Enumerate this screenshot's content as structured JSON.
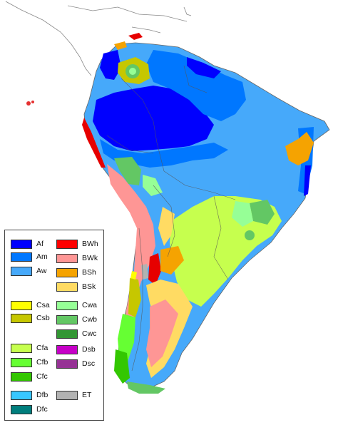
{
  "legend": {
    "items": [
      {
        "code": "Af",
        "color": "#0000FE"
      },
      {
        "code": "Am",
        "color": "#0077FF"
      },
      {
        "code": "Aw",
        "color": "#46A9FA"
      },
      {
        "code": "Csa",
        "color": "#FEFE00"
      },
      {
        "code": "Csb",
        "color": "#C6C700"
      },
      {
        "code": "Cfa",
        "color": "#C6FF4E"
      },
      {
        "code": "Cfb",
        "color": "#66FF33"
      },
      {
        "code": "Cfc",
        "color": "#33C701"
      },
      {
        "code": "Dfb",
        "color": "#38C7FF"
      },
      {
        "code": "Dfc",
        "color": "#007E7D"
      },
      {
        "code": "BWh",
        "color": "#FE0000"
      },
      {
        "code": "BWk",
        "color": "#FE9695"
      },
      {
        "code": "BSh",
        "color": "#F5A301"
      },
      {
        "code": "BSk",
        "color": "#FFDB63"
      },
      {
        "code": "Cwa",
        "color": "#96FF96"
      },
      {
        "code": "Cwb",
        "color": "#63C764"
      },
      {
        "code": "Cwc",
        "color": "#329633"
      },
      {
        "code": "Dsb",
        "color": "#C600C7"
      },
      {
        "code": "Dsc",
        "color": "#963295"
      },
      {
        "code": "ET",
        "color": "#B2B2B2"
      }
    ]
  }
}
